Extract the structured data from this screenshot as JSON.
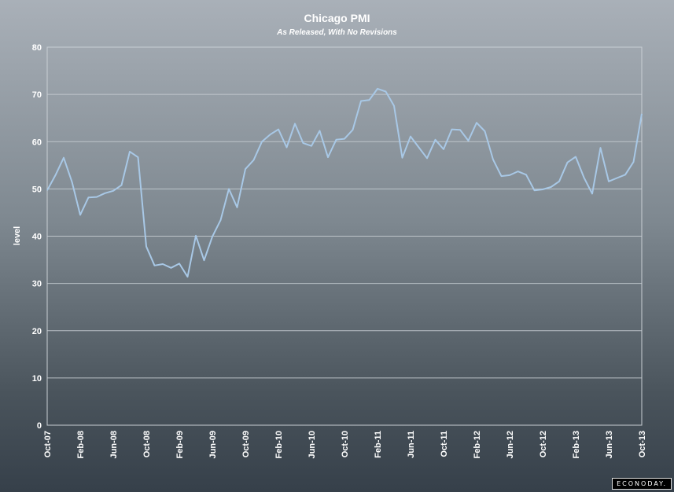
{
  "chart_data": {
    "type": "line",
    "title": "Chicago PMI",
    "subtitle": "As Released, With No Revisions",
    "ylabel": "level",
    "ylim": [
      0,
      80
    ],
    "yticks": [
      0,
      10,
      20,
      30,
      40,
      50,
      60,
      70,
      80
    ],
    "xtick_labels": [
      "Oct-07",
      "Feb-08",
      "Jun-08",
      "Oct-08",
      "Feb-09",
      "Jun-09",
      "Oct-09",
      "Feb-10",
      "Jun-10",
      "Oct-10",
      "Feb-11",
      "Jun-11",
      "Oct-11",
      "Feb-12",
      "Jun-12",
      "Oct-12",
      "Feb-13",
      "Jun-13",
      "Oct-13"
    ],
    "grid": true,
    "series": [
      {
        "color": "#a8c8e6",
        "x": [
          "Oct-07",
          "Nov-07",
          "Dec-07",
          "Jan-08",
          "Feb-08",
          "Mar-08",
          "Apr-08",
          "May-08",
          "Jun-08",
          "Jul-08",
          "Aug-08",
          "Sep-08",
          "Oct-08",
          "Nov-08",
          "Dec-08",
          "Jan-09",
          "Feb-09",
          "Mar-09",
          "Apr-09",
          "May-09",
          "Jun-09",
          "Jul-09",
          "Aug-09",
          "Sep-09",
          "Oct-09",
          "Nov-09",
          "Dec-09",
          "Jan-10",
          "Feb-10",
          "Mar-10",
          "Apr-10",
          "May-10",
          "Jun-10",
          "Jul-10",
          "Aug-10",
          "Sep-10",
          "Oct-10",
          "Nov-10",
          "Dec-10",
          "Jan-11",
          "Feb-11",
          "Mar-11",
          "Apr-11",
          "May-11",
          "Jun-11",
          "Jul-11",
          "Aug-11",
          "Sep-11",
          "Oct-11",
          "Nov-11",
          "Dec-11",
          "Jan-12",
          "Feb-12",
          "Mar-12",
          "Apr-12",
          "May-12",
          "Jun-12",
          "Jul-12",
          "Aug-12",
          "Sep-12",
          "Oct-12",
          "Nov-12",
          "Dec-12",
          "Jan-13",
          "Feb-13",
          "Mar-13",
          "Apr-13",
          "May-13",
          "Jun-13",
          "Jul-13",
          "Aug-13",
          "Sep-13",
          "Oct-13"
        ],
        "values": [
          49.7,
          52.9,
          56.6,
          51.5,
          44.5,
          48.2,
          48.3,
          49.1,
          49.6,
          50.8,
          57.9,
          56.7,
          37.8,
          33.8,
          34.1,
          33.3,
          34.2,
          31.4,
          40.1,
          34.9,
          39.9,
          43.4,
          50.0,
          46.1,
          54.2,
          56.1,
          60.0,
          61.5,
          62.6,
          58.8,
          63.8,
          59.7,
          59.1,
          62.3,
          56.7,
          60.4,
          60.6,
          62.5,
          68.6,
          68.8,
          71.2,
          70.6,
          67.6,
          56.6,
          61.1,
          58.8,
          56.5,
          60.4,
          58.4,
          62.6,
          62.5,
          60.2,
          64.0,
          62.2,
          56.2,
          52.7,
          52.9,
          53.7,
          53.0,
          49.7,
          49.9,
          50.4,
          51.6,
          55.6,
          56.8,
          52.4,
          49.0,
          58.7,
          51.6,
          52.3,
          53.0,
          55.7,
          65.9
        ]
      }
    ]
  },
  "branding": {
    "logo_text": "ECONODAY."
  }
}
